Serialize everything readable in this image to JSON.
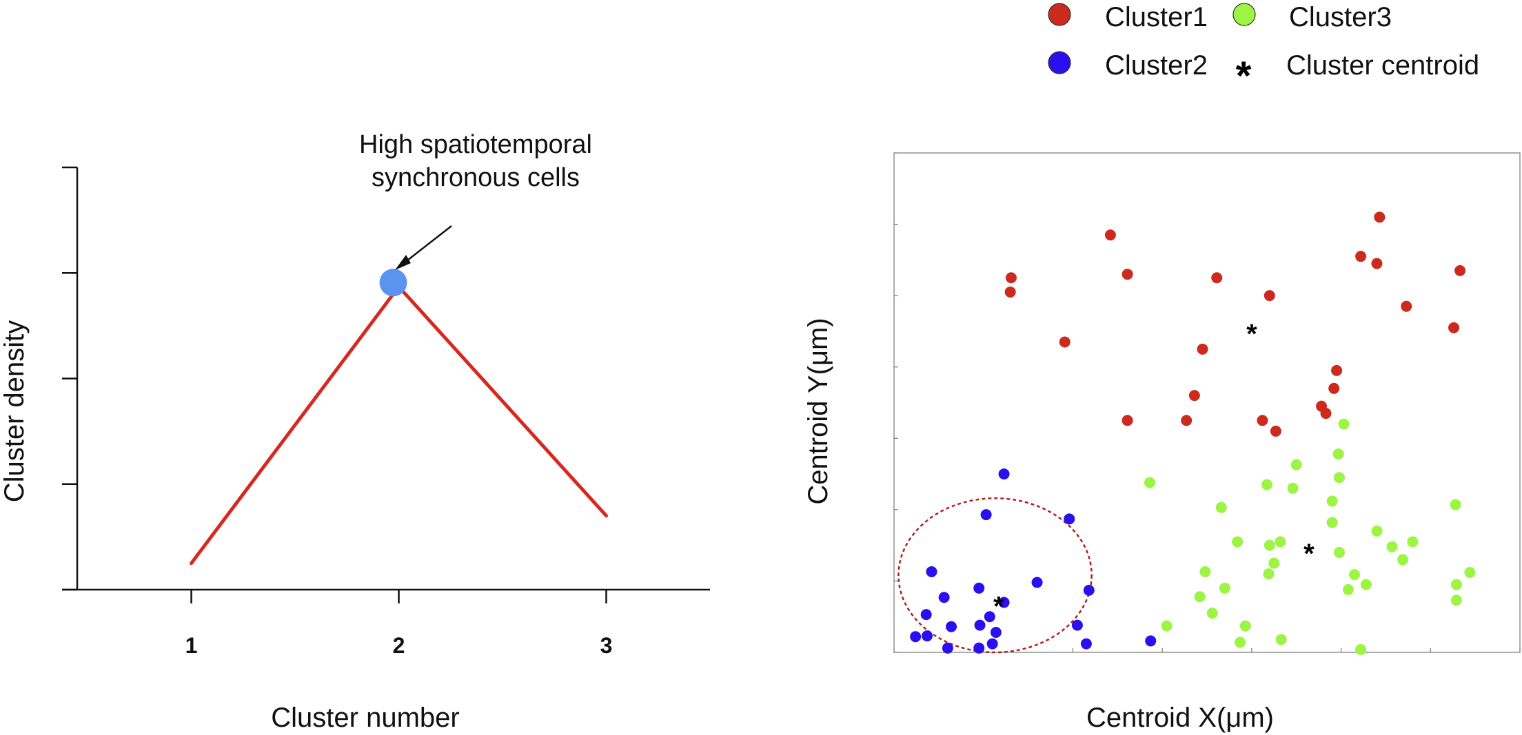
{
  "chart_data": [
    {
      "type": "line",
      "xlabel": "Cluster number",
      "ylabel": "Cluster density",
      "x": [
        1,
        2,
        3
      ],
      "y": [
        0.25,
        2.87,
        0.7
      ],
      "xlim": [
        0.45,
        3.5
      ],
      "ylim": [
        0,
        4
      ],
      "xticks": [
        "1",
        "2",
        "3"
      ],
      "yticks": [
        0,
        1,
        2,
        3,
        4
      ],
      "line_color": "#d6281e",
      "highlight": {
        "x": 2,
        "y": 2.87,
        "color": "#5b93f0"
      },
      "annotation": {
        "lines": [
          "High spatiotemporal",
          "synchronous cells"
        ],
        "target_x": 2,
        "target_y": 2.87
      }
    },
    {
      "type": "scatter",
      "xlabel": "Centroid X(μm)",
      "ylabel": "Centroid Y(μm)",
      "xlim": [
        0,
        7
      ],
      "ylim": [
        0,
        7
      ],
      "ticks": [
        0,
        1,
        2,
        3,
        4,
        5,
        6,
        7
      ],
      "grid": false,
      "legend_position": "top, above plot",
      "legend": [
        {
          "label": "Cluster1",
          "marker": "circle",
          "color": "#cc2a1c"
        },
        {
          "label": "Cluster3",
          "marker": "circle",
          "color": "#9bf542"
        },
        {
          "label": "Cluster2",
          "marker": "circle",
          "color": "#2a10ee"
        },
        {
          "label": "Cluster centroid",
          "marker": "asterisk",
          "color": "#000000"
        }
      ],
      "series": [
        {
          "name": "Cluster1",
          "color": "#cc2a1c",
          "points": [
            [
              2.42,
              5.85
            ],
            [
              2.61,
              5.3
            ],
            [
              1.3,
              5.05
            ],
            [
              1.31,
              5.25
            ],
            [
              3.61,
              5.25
            ],
            [
              4.2,
              5.0
            ],
            [
              5.43,
              6.1
            ],
            [
              5.22,
              5.55
            ],
            [
              5.4,
              5.45
            ],
            [
              5.73,
              4.85
            ],
            [
              6.33,
              5.35
            ],
            [
              6.26,
              4.55
            ],
            [
              1.91,
              4.35
            ],
            [
              3.45,
              4.25
            ],
            [
              3.36,
              3.6
            ],
            [
              3.27,
              3.25
            ],
            [
              2.61,
              3.25
            ],
            [
              4.12,
              3.25
            ],
            [
              4.27,
              3.1
            ],
            [
              4.95,
              3.95
            ],
            [
              4.92,
              3.7
            ],
            [
              4.78,
              3.45
            ],
            [
              4.83,
              3.35
            ]
          ]
        },
        {
          "name": "Cluster2",
          "color": "#2a10ee",
          "points": [
            [
              1.23,
              2.5
            ],
            [
              1.03,
              1.93
            ],
            [
              1.96,
              1.87
            ],
            [
              0.42,
              1.13
            ],
            [
              0.56,
              0.77
            ],
            [
              0.95,
              0.9
            ],
            [
              1.6,
              0.98
            ],
            [
              2.18,
              0.87
            ],
            [
              0.36,
              0.53
            ],
            [
              0.64,
              0.36
            ],
            [
              0.96,
              0.38
            ],
            [
              1.07,
              0.5
            ],
            [
              1.23,
              0.7
            ],
            [
              1.14,
              0.28
            ],
            [
              0.37,
              0.23
            ],
            [
              0.24,
              0.22
            ],
            [
              0.6,
              0.06
            ],
            [
              0.95,
              0.06
            ],
            [
              1.1,
              0.12
            ],
            [
              2.05,
              0.38
            ],
            [
              2.15,
              0.12
            ],
            [
              2.87,
              0.16
            ]
          ]
        },
        {
          "name": "Cluster3",
          "color": "#9bf542",
          "points": [
            [
              2.86,
              2.38
            ],
            [
              4.97,
              2.78
            ],
            [
              4.98,
              2.45
            ],
            [
              4.5,
              2.63
            ],
            [
              5.03,
              3.2
            ],
            [
              4.17,
              2.35
            ],
            [
              4.46,
              2.3
            ],
            [
              3.66,
              2.03
            ],
            [
              4.9,
              2.12
            ],
            [
              4.9,
              1.82
            ],
            [
              3.84,
              1.55
            ],
            [
              4.2,
              1.5
            ],
            [
              4.32,
              1.55
            ],
            [
              4.98,
              1.4
            ],
            [
              4.19,
              1.1
            ],
            [
              4.25,
              1.25
            ],
            [
              5.57,
              1.48
            ],
            [
              5.4,
              1.7
            ],
            [
              5.8,
              1.55
            ],
            [
              5.69,
              1.3
            ],
            [
              6.28,
              2.07
            ],
            [
              3.48,
              1.13
            ],
            [
              3.7,
              0.9
            ],
            [
              5.15,
              1.09
            ],
            [
              5.28,
              0.95
            ],
            [
              5.08,
              0.88
            ],
            [
              3.42,
              0.78
            ],
            [
              3.56,
              0.55
            ],
            [
              3.05,
              0.37
            ],
            [
              3.93,
              0.37
            ],
            [
              6.44,
              1.12
            ],
            [
              6.29,
              0.95
            ],
            [
              6.29,
              0.73
            ],
            [
              3.87,
              0.14
            ],
            [
              4.33,
              0.18
            ],
            [
              5.22,
              0.04
            ]
          ]
        }
      ],
      "centroids": [
        [
          4.0,
          4.5
        ],
        [
          1.17,
          0.68
        ],
        [
          4.64,
          1.42
        ]
      ],
      "highlight_region": {
        "shape": "circle",
        "center": [
          1.13,
          1.08
        ],
        "radius": 1.08,
        "style": "dashed",
        "color": "#b02020"
      }
    }
  ]
}
